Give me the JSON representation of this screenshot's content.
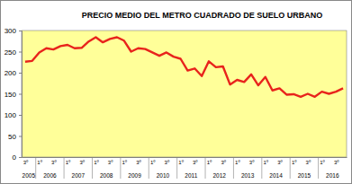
{
  "chart_data": {
    "type": "line",
    "title": "PRECIO MEDIO DEL METRO CUADRADO DE SUELO URBANO",
    "categories": [
      "3º",
      null,
      "1º",
      null,
      "3º",
      null,
      "1º",
      null,
      "3º",
      null,
      "1º",
      null,
      "3º",
      null,
      "1º",
      null,
      "3º",
      null,
      "1º",
      null,
      "3º",
      null,
      "1º",
      null,
      "3º",
      null,
      "1º",
      null,
      "3º",
      null,
      "1º",
      null,
      "3º",
      null,
      "1º",
      null,
      "3º",
      null,
      "1º",
      null,
      "3º",
      null,
      "1º",
      null,
      "3º",
      null
    ],
    "category_groups": [
      "2005",
      "2005",
      "2006",
      "2006",
      "2006",
      "2006",
      "2007",
      "2007",
      "2007",
      "2007",
      "2008",
      "2008",
      "2008",
      "2008",
      "2009",
      "2009",
      "2009",
      "2009",
      "2010",
      "2010",
      "2010",
      "2010",
      "2011",
      "2011",
      "2011",
      "2011",
      "2012",
      "2012",
      "2012",
      "2012",
      "2013",
      "2013",
      "2013",
      "2013",
      "2014",
      "2014",
      "2014",
      "2014",
      "2015",
      "2015",
      "2015",
      "2015",
      "2016",
      "2016",
      "2016",
      "2016"
    ],
    "values": [
      226,
      228,
      248,
      258,
      255,
      263,
      266,
      258,
      259,
      274,
      284,
      272,
      280,
      284,
      276,
      250,
      258,
      256,
      248,
      240,
      248,
      238,
      233,
      205,
      210,
      192,
      227,
      213,
      215,
      172,
      183,
      178,
      196,
      170,
      190,
      158,
      163,
      148,
      149,
      143,
      150,
      143,
      155,
      150,
      155,
      163
    ],
    "color": "#e8231c",
    "ylim": [
      0,
      300
    ],
    "yticks": [
      0,
      50,
      100,
      150,
      200,
      250,
      300
    ],
    "grid": false
  }
}
